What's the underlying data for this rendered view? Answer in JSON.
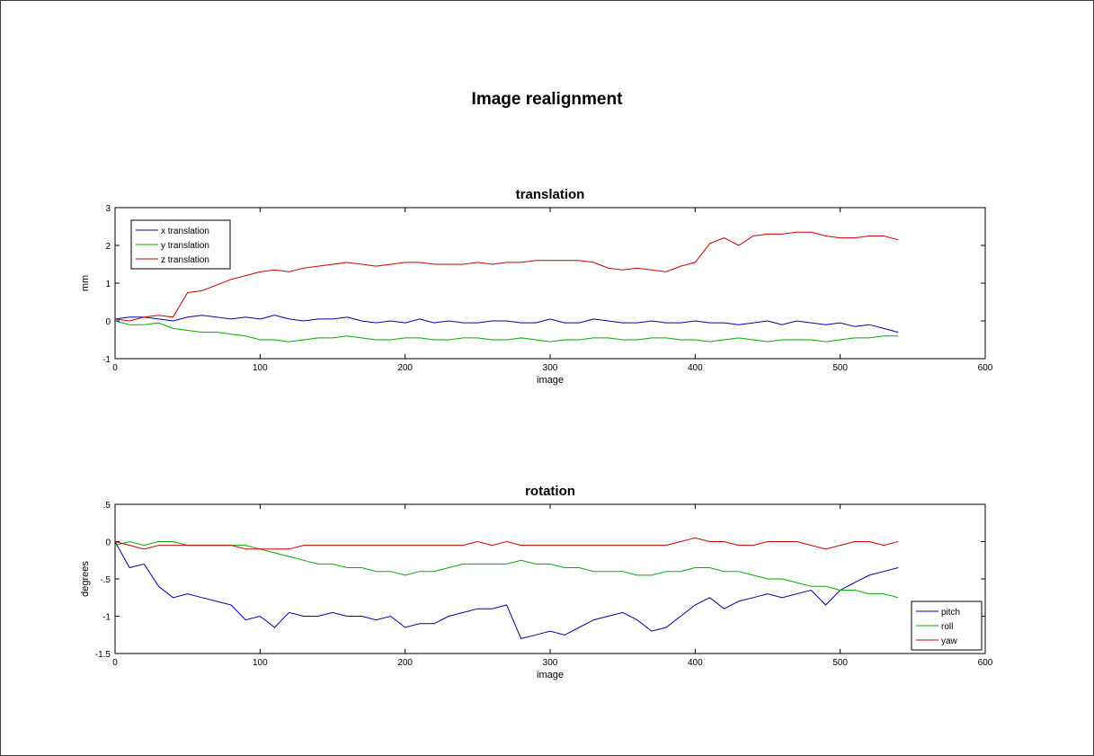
{
  "figure": {
    "title": "Image realignment"
  },
  "chart_data": [
    {
      "type": "line",
      "title": "translation",
      "xlabel": "image",
      "ylabel": "mm",
      "xlim": [
        0,
        600
      ],
      "ylim": [
        -1,
        3
      ],
      "xticks": [
        0,
        100,
        200,
        300,
        400,
        500,
        600
      ],
      "yticks": [
        -1,
        0,
        1,
        2,
        3
      ],
      "grid": false,
      "legend_position": "top-left",
      "series": [
        {
          "name": "x translation",
          "color": "#0000aa",
          "x": [
            0,
            10,
            20,
            30,
            40,
            50,
            60,
            70,
            80,
            90,
            100,
            110,
            120,
            130,
            140,
            150,
            160,
            170,
            180,
            190,
            200,
            210,
            220,
            230,
            240,
            250,
            260,
            270,
            280,
            290,
            300,
            310,
            320,
            330,
            340,
            350,
            360,
            370,
            380,
            390,
            400,
            410,
            420,
            430,
            440,
            450,
            460,
            470,
            480,
            490,
            500,
            510,
            520,
            530,
            540
          ],
          "y": [
            0.05,
            0.1,
            0.1,
            0.05,
            0,
            0.1,
            0.15,
            0.1,
            0.05,
            0.1,
            0.05,
            0.15,
            0.05,
            0,
            0.05,
            0.05,
            0.1,
            0,
            -0.05,
            0,
            -0.05,
            0.05,
            -0.05,
            0,
            -0.05,
            -0.05,
            0,
            0,
            -0.05,
            -0.05,
            0.05,
            -0.05,
            -0.05,
            0.05,
            0,
            -0.05,
            -0.05,
            0,
            -0.05,
            -0.05,
            0,
            -0.05,
            -0.05,
            -0.1,
            -0.05,
            0,
            -0.1,
            0,
            -0.05,
            -0.1,
            -0.05,
            -0.15,
            -0.1,
            -0.2,
            -0.3
          ]
        },
        {
          "name": "y translation",
          "color": "#00aa00",
          "x": [
            0,
            10,
            20,
            30,
            40,
            50,
            60,
            70,
            80,
            90,
            100,
            110,
            120,
            130,
            140,
            150,
            160,
            170,
            180,
            190,
            200,
            210,
            220,
            230,
            240,
            250,
            260,
            270,
            280,
            290,
            300,
            310,
            320,
            330,
            340,
            350,
            360,
            370,
            380,
            390,
            400,
            410,
            420,
            430,
            440,
            450,
            460,
            470,
            480,
            490,
            500,
            510,
            520,
            530,
            540
          ],
          "y": [
            0,
            -0.1,
            -0.1,
            -0.05,
            -0.2,
            -0.25,
            -0.3,
            -0.3,
            -0.35,
            -0.4,
            -0.5,
            -0.5,
            -0.55,
            -0.5,
            -0.45,
            -0.45,
            -0.4,
            -0.45,
            -0.5,
            -0.5,
            -0.45,
            -0.45,
            -0.5,
            -0.5,
            -0.45,
            -0.45,
            -0.5,
            -0.5,
            -0.45,
            -0.5,
            -0.55,
            -0.5,
            -0.5,
            -0.45,
            -0.45,
            -0.5,
            -0.5,
            -0.45,
            -0.45,
            -0.5,
            -0.5,
            -0.55,
            -0.5,
            -0.45,
            -0.5,
            -0.55,
            -0.5,
            -0.5,
            -0.5,
            -0.55,
            -0.5,
            -0.45,
            -0.45,
            -0.4,
            -0.4
          ]
        },
        {
          "name": "z translation",
          "color": "#cc0000",
          "x": [
            0,
            10,
            20,
            30,
            40,
            50,
            60,
            70,
            80,
            90,
            100,
            110,
            120,
            130,
            140,
            150,
            160,
            170,
            180,
            190,
            200,
            210,
            220,
            230,
            240,
            250,
            260,
            270,
            280,
            290,
            300,
            310,
            320,
            330,
            340,
            350,
            360,
            370,
            380,
            390,
            400,
            410,
            420,
            430,
            440,
            450,
            460,
            470,
            480,
            490,
            500,
            510,
            520,
            530,
            540
          ],
          "y": [
            0.05,
            0,
            0.1,
            0.15,
            0.1,
            0.75,
            0.8,
            0.95,
            1.1,
            1.2,
            1.3,
            1.35,
            1.3,
            1.4,
            1.45,
            1.5,
            1.55,
            1.5,
            1.45,
            1.5,
            1.55,
            1.55,
            1.5,
            1.5,
            1.5,
            1.55,
            1.5,
            1.55,
            1.55,
            1.6,
            1.6,
            1.6,
            1.6,
            1.55,
            1.4,
            1.35,
            1.4,
            1.35,
            1.3,
            1.45,
            1.55,
            2.05,
            2.2,
            2.0,
            2.25,
            2.3,
            2.3,
            2.35,
            2.35,
            2.25,
            2.2,
            2.2,
            2.25,
            2.25,
            2.15
          ]
        }
      ]
    },
    {
      "type": "line",
      "title": "rotation",
      "xlabel": "image",
      "ylabel": "degrees",
      "xlim": [
        0,
        600
      ],
      "ylim": [
        -1.5,
        0.5
      ],
      "xticks": [
        0,
        100,
        200,
        300,
        400,
        500,
        600
      ],
      "yticks": [
        -1.5,
        -1,
        -0.5,
        0,
        0.5
      ],
      "grid": false,
      "legend_position": "bottom-right",
      "series": [
        {
          "name": "pitch",
          "color": "#0000aa",
          "x": [
            0,
            10,
            20,
            30,
            40,
            50,
            60,
            70,
            80,
            90,
            100,
            110,
            120,
            130,
            140,
            150,
            160,
            170,
            180,
            190,
            200,
            210,
            220,
            230,
            240,
            250,
            260,
            270,
            280,
            290,
            300,
            310,
            320,
            330,
            340,
            350,
            360,
            370,
            380,
            390,
            400,
            410,
            420,
            430,
            440,
            450,
            460,
            470,
            480,
            490,
            500,
            510,
            520,
            530,
            540
          ],
          "y": [
            0,
            -0.35,
            -0.3,
            -0.6,
            -0.75,
            -0.7,
            -0.75,
            -0.8,
            -0.85,
            -1.05,
            -1.0,
            -1.15,
            -0.95,
            -1.0,
            -1.0,
            -0.95,
            -1.0,
            -1.0,
            -1.05,
            -1.0,
            -1.15,
            -1.1,
            -1.1,
            -1.0,
            -0.95,
            -0.9,
            -0.9,
            -0.85,
            -1.3,
            -1.25,
            -1.2,
            -1.25,
            -1.15,
            -1.05,
            -1.0,
            -0.95,
            -1.05,
            -1.2,
            -1.15,
            -1.0,
            -0.85,
            -0.75,
            -0.9,
            -0.8,
            -0.75,
            -0.7,
            -0.75,
            -0.7,
            -0.65,
            -0.85,
            -0.65,
            -0.55,
            -0.45,
            -0.4,
            -0.35
          ]
        },
        {
          "name": "roll",
          "color": "#00aa00",
          "x": [
            0,
            10,
            20,
            30,
            40,
            50,
            60,
            70,
            80,
            90,
            100,
            110,
            120,
            130,
            140,
            150,
            160,
            170,
            180,
            190,
            200,
            210,
            220,
            230,
            240,
            250,
            260,
            270,
            280,
            290,
            300,
            310,
            320,
            330,
            340,
            350,
            360,
            370,
            380,
            390,
            400,
            410,
            420,
            430,
            440,
            450,
            460,
            470,
            480,
            490,
            500,
            510,
            520,
            530,
            540
          ],
          "y": [
            -0.05,
            0,
            -0.05,
            0,
            0,
            -0.05,
            -0.05,
            -0.05,
            -0.05,
            -0.05,
            -0.1,
            -0.15,
            -0.2,
            -0.25,
            -0.3,
            -0.3,
            -0.35,
            -0.35,
            -0.4,
            -0.4,
            -0.45,
            -0.4,
            -0.4,
            -0.35,
            -0.3,
            -0.3,
            -0.3,
            -0.3,
            -0.25,
            -0.3,
            -0.3,
            -0.35,
            -0.35,
            -0.4,
            -0.4,
            -0.4,
            -0.45,
            -0.45,
            -0.4,
            -0.4,
            -0.35,
            -0.35,
            -0.4,
            -0.4,
            -0.45,
            -0.5,
            -0.5,
            -0.55,
            -0.6,
            -0.6,
            -0.65,
            -0.65,
            -0.7,
            -0.7,
            -0.75
          ]
        },
        {
          "name": "yaw",
          "color": "#cc0000",
          "x": [
            0,
            10,
            20,
            30,
            40,
            50,
            60,
            70,
            80,
            90,
            100,
            110,
            120,
            130,
            140,
            150,
            160,
            170,
            180,
            190,
            200,
            210,
            220,
            230,
            240,
            250,
            260,
            270,
            280,
            290,
            300,
            310,
            320,
            330,
            340,
            350,
            360,
            370,
            380,
            390,
            400,
            410,
            420,
            430,
            440,
            450,
            460,
            470,
            480,
            490,
            500,
            510,
            520,
            530,
            540
          ],
          "y": [
            0,
            -0.05,
            -0.1,
            -0.05,
            -0.05,
            -0.05,
            -0.05,
            -0.05,
            -0.05,
            -0.1,
            -0.1,
            -0.1,
            -0.1,
            -0.05,
            -0.05,
            -0.05,
            -0.05,
            -0.05,
            -0.05,
            -0.05,
            -0.05,
            -0.05,
            -0.05,
            -0.05,
            -0.05,
            0,
            -0.05,
            0,
            -0.05,
            -0.05,
            -0.05,
            -0.05,
            -0.05,
            -0.05,
            -0.05,
            -0.05,
            -0.05,
            -0.05,
            -0.05,
            0,
            0.05,
            0,
            0,
            -0.05,
            -0.05,
            0,
            0,
            0,
            -0.05,
            -0.1,
            -0.05,
            0,
            0,
            -0.05,
            0
          ]
        }
      ]
    }
  ]
}
